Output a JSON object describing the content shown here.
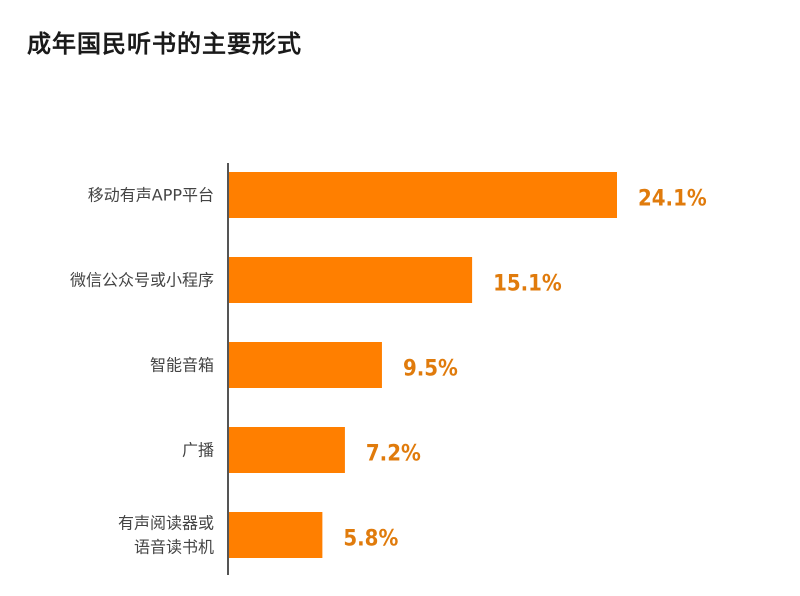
{
  "chart_data": {
    "type": "bar",
    "orientation": "horizontal",
    "title": "成年国民听书的主要形式",
    "categories": [
      [
        "移动有声APP平台"
      ],
      [
        "微信公众号或小程序"
      ],
      [
        "智能音箱"
      ],
      [
        "广播"
      ],
      [
        "有声阅读器或",
        "语音读书机"
      ]
    ],
    "values": [
      24.1,
      15.1,
      9.5,
      7.2,
      5.8
    ],
    "value_labels": [
      "24.1%",
      "15.1%",
      "9.5%",
      "7.2%",
      "5.8%"
    ],
    "unit": "%",
    "xlim": [
      0,
      24.1
    ],
    "grid": false,
    "legend": "none",
    "colors": {
      "bar": "#FF7F00",
      "value_label": "#E07B0C",
      "axis": "#555555"
    }
  }
}
